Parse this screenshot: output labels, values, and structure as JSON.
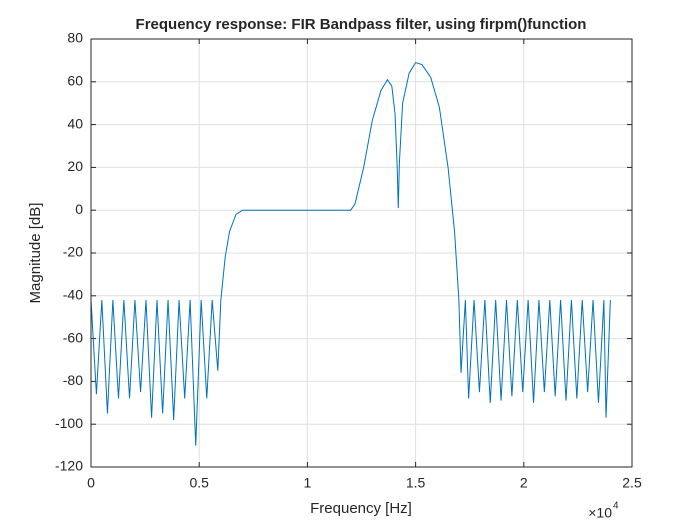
{
  "chart_data": {
    "type": "line",
    "title": "Frequency response: FIR Bandpass filter, using firpm()function",
    "x_label": "Frequency [Hz]",
    "y_label": "Magnitude [dB]",
    "x_exponent": {
      "base": "×10",
      "power": "4"
    },
    "xlim": [
      0,
      25000
    ],
    "xticks": [
      0,
      {
        "value": 5000,
        "label": "0.5"
      },
      {
        "value": 10000,
        "label": "1"
      },
      {
        "value": 15000,
        "label": "1.5"
      },
      {
        "value": 20000,
        "label": "2"
      },
      {
        "value": 25000,
        "label": "2.5"
      }
    ],
    "ylim": [
      -120,
      80
    ],
    "yticks": [
      -120,
      -100,
      -80,
      -60,
      -40,
      -20,
      0,
      20,
      40,
      60,
      80
    ],
    "grid": true,
    "series": [
      {
        "color": "#0072bd",
        "x": [
          0,
          250,
          500,
          760,
          1010,
          1270,
          1520,
          1780,
          2030,
          2290,
          2540,
          2800,
          3050,
          3310,
          3560,
          3820,
          4070,
          4330,
          4580,
          4840,
          5090,
          5350,
          5600,
          5860,
          6000,
          6200,
          6400,
          6700,
          7000,
          8000,
          9000,
          10000,
          11000,
          12000,
          12200,
          12600,
          13000,
          13400,
          13700,
          13900,
          14050,
          14150,
          14200,
          14250,
          14400,
          14700,
          15000,
          15300,
          15700,
          16100,
          16500,
          16800,
          17000,
          17100,
          17300,
          17450,
          17700,
          17950,
          18200,
          18450,
          18700,
          18950,
          19200,
          19450,
          19700,
          19950,
          20200,
          20450,
          20700,
          20950,
          21200,
          21450,
          21700,
          21950,
          22200,
          22450,
          22700,
          22950,
          23200,
          23450,
          23700,
          23800,
          24000
        ],
        "values": [
          -42,
          -86,
          -42,
          -95,
          -42,
          -88,
          -42,
          -88,
          -42,
          -85,
          -42,
          -97,
          -42,
          -95,
          -42,
          -98,
          -42,
          -88,
          -42,
          -110,
          -42,
          -88,
          -42,
          -75,
          -42,
          -22,
          -10,
          -2,
          0,
          0,
          0,
          0,
          0,
          0,
          3,
          20,
          42,
          56,
          61,
          58,
          45,
          20,
          1,
          22,
          50,
          64,
          69,
          68,
          62,
          48,
          20,
          -10,
          -42,
          -76,
          -42,
          -88,
          -42,
          -85,
          -42,
          -90,
          -42,
          -89,
          -42,
          -87,
          -42,
          -85,
          -42,
          -90,
          -42,
          -85,
          -42,
          -87,
          -42,
          -89,
          -42,
          -88,
          -42,
          -85,
          -42,
          -90,
          -42,
          -97,
          -42
        ]
      }
    ]
  }
}
